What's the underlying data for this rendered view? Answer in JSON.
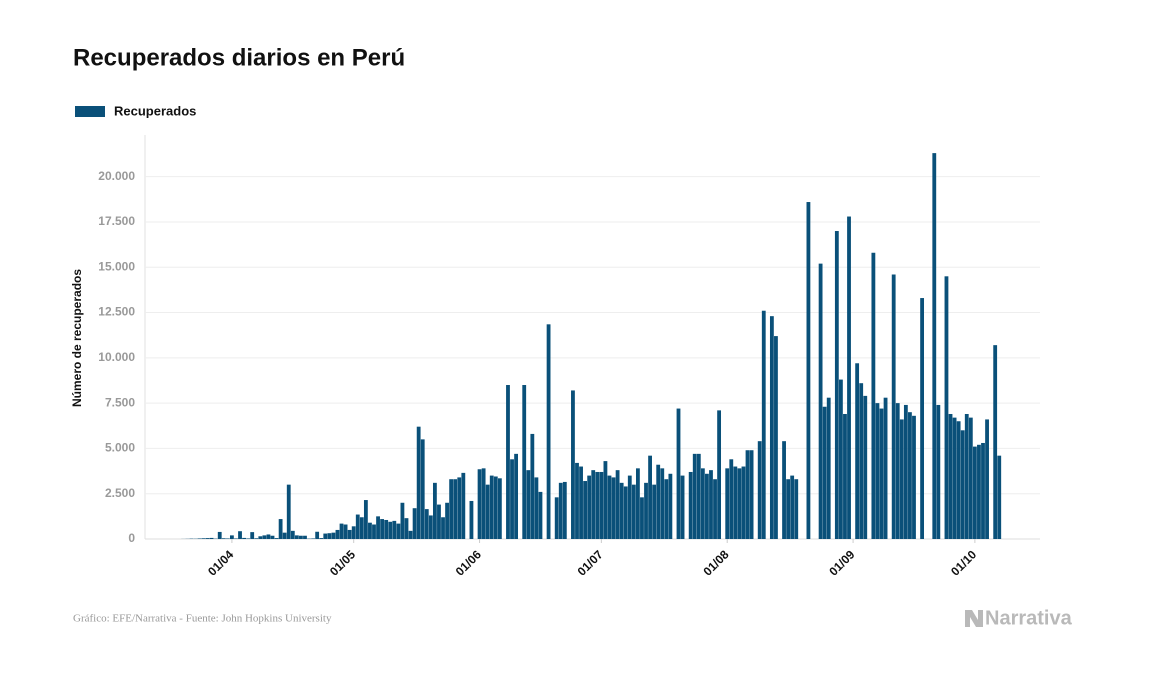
{
  "chart_data": {
    "type": "bar",
    "title": "Recuperados diarios en Perú",
    "y_label": "Número de recuperados",
    "source": "Gráfico: EFE/Narrativa - Fuente: John Hopkins University",
    "logo": "Narrativa",
    "categories": [
      null,
      null,
      null,
      null,
      null,
      null,
      null,
      null,
      null,
      null,
      null,
      null,
      null,
      null,
      null,
      "01/04",
      null,
      null,
      null,
      null,
      null,
      null,
      null,
      null,
      null,
      null,
      null,
      null,
      null,
      null,
      null,
      null,
      null,
      null,
      null,
      null,
      null,
      null,
      null,
      null,
      null,
      null,
      null,
      null,
      null,
      "01/05",
      null,
      null,
      null,
      null,
      null,
      null,
      null,
      null,
      null,
      null,
      null,
      null,
      null,
      null,
      null,
      null,
      null,
      null,
      null,
      null,
      null,
      null,
      null,
      null,
      null,
      null,
      null,
      null,
      null,
      null,
      "01/06",
      null,
      null,
      null,
      null,
      null,
      null,
      null,
      null,
      null,
      null,
      null,
      null,
      null,
      null,
      null,
      null,
      null,
      null,
      null,
      null,
      null,
      null,
      null,
      null,
      null,
      null,
      null,
      null,
      null,
      "01/07",
      null,
      null,
      null,
      null,
      null,
      null,
      null,
      null,
      null,
      null,
      null,
      null,
      null,
      null,
      null,
      null,
      null,
      null,
      null,
      null,
      null,
      null,
      null,
      null,
      null,
      null,
      null,
      null,
      null,
      null,
      "01/08",
      null,
      null,
      null,
      null,
      null,
      null,
      null,
      null,
      null,
      null,
      null,
      null,
      null,
      null,
      null,
      null,
      null,
      null,
      null,
      null,
      null,
      null,
      null,
      null,
      null,
      null,
      null,
      null,
      null,
      null,
      "01/09",
      null,
      null,
      null,
      null,
      null,
      null,
      null,
      null,
      null,
      null,
      null,
      null,
      null,
      null,
      null,
      null,
      null,
      null,
      null,
      null,
      null,
      null,
      null,
      null,
      null,
      null,
      null,
      null,
      null,
      "01/10",
      null,
      null,
      null,
      null,
      null,
      null
    ],
    "series": [
      {
        "name": "Recuperados",
        "color": "#0a5079",
        "values": [
          0,
          0,
          0,
          5,
          10,
          20,
          15,
          30,
          40,
          50,
          60,
          20,
          390,
          40,
          30,
          200,
          30,
          430,
          60,
          30,
          380,
          40,
          150,
          200,
          250,
          180,
          50,
          1100,
          350,
          3000,
          450,
          200,
          180,
          180,
          20,
          30,
          400,
          50,
          300,
          320,
          350,
          500,
          850,
          800,
          500,
          700,
          1350,
          1200,
          2150,
          900,
          800,
          1250,
          1100,
          1050,
          950,
          1000,
          850,
          2000,
          1150,
          450,
          1700,
          6200,
          5500,
          1650,
          1300,
          3100,
          1900,
          1200,
          2000,
          3300,
          3300,
          3400,
          3650,
          0,
          2100,
          0,
          3850,
          3900,
          3000,
          3500,
          3450,
          3350,
          0,
          8500,
          4400,
          4700,
          0,
          8500,
          3800,
          5800,
          3400,
          2600,
          0,
          11850,
          0,
          2300,
          3100,
          3150,
          0,
          8200,
          4200,
          4000,
          3200,
          3500,
          3800,
          3700,
          3700,
          4300,
          3500,
          3400,
          3800,
          3100,
          2900,
          3500,
          3000,
          3900,
          2300,
          3100,
          4600,
          3000,
          4100,
          3900,
          3300,
          3600,
          0,
          7200,
          3500,
          0,
          3700,
          4700,
          4700,
          3900,
          3600,
          3800,
          3300,
          7100,
          0,
          3900,
          4400,
          4000,
          3900,
          4000,
          4900,
          4900,
          0,
          5400,
          12600,
          0,
          12300,
          11200,
          0,
          5400,
          3300,
          3500,
          3300,
          0,
          0,
          18600,
          0,
          0,
          15200,
          7300,
          7800,
          0,
          17000,
          8800,
          6900,
          17800,
          0,
          9700,
          8600,
          7900,
          0,
          15800,
          7500,
          7200,
          7800,
          0,
          14600,
          7500,
          6600,
          7400,
          7000,
          6800,
          0,
          13300,
          0,
          0,
          21300,
          7400,
          0,
          14500,
          6900,
          6700,
          6500,
          6000,
          6900,
          6700,
          5100,
          5200,
          5300,
          6600,
          0,
          10700,
          4600
        ]
      }
    ],
    "ylim": [
      0,
      22300
    ],
    "yticks": [
      0,
      {
        "value": 2500,
        "label": "2.500"
      },
      {
        "value": 5000,
        "label": "5.000"
      },
      {
        "value": 7500,
        "label": "7.500"
      },
      {
        "value": 10000,
        "label": "10.000"
      },
      {
        "value": 12500,
        "label": "12.500"
      },
      {
        "value": 15000,
        "label": "15.000"
      },
      {
        "value": 17500,
        "label": "17.500"
      },
      {
        "value": 20000,
        "label": "20.000"
      }
    ],
    "grid": true
  }
}
